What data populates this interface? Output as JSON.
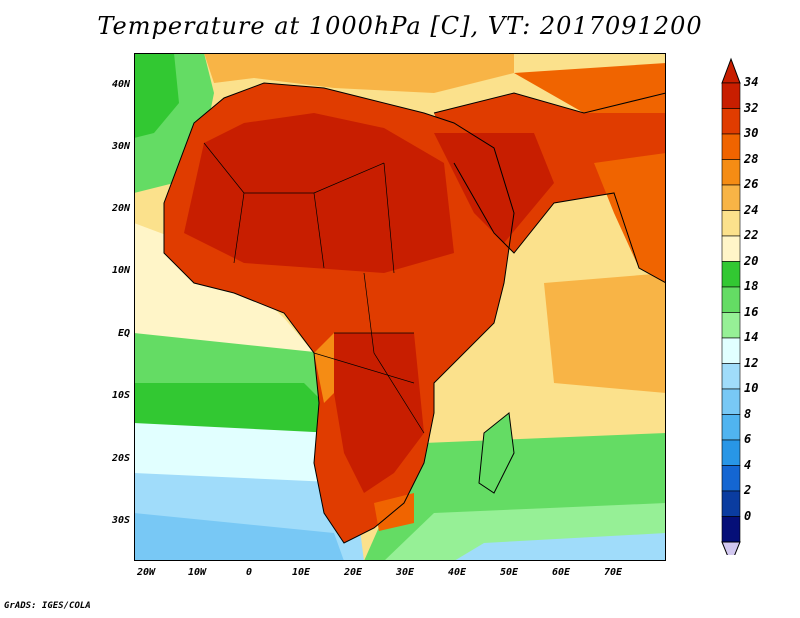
{
  "title": "Temperature at 1000hPa [C], VT: 2017091200",
  "credit": "GrADS: IGES/COLA",
  "axes": {
    "lat_labels": [
      "40N",
      "30N",
      "20N",
      "10N",
      "EQ",
      "10S",
      "20S",
      "30S"
    ],
    "lon_labels": [
      "20W",
      "10W",
      "0",
      "10E",
      "20E",
      "30E",
      "40E",
      "50E",
      "60E",
      "70E"
    ]
  },
  "colorbar": {
    "levels": [
      "34",
      "32",
      "30",
      "28",
      "26",
      "24",
      "22",
      "20",
      "18",
      "16",
      "14",
      "12",
      "10",
      "8",
      "6",
      "4",
      "2",
      "0"
    ],
    "colors": [
      "#c81e00",
      "#e03c00",
      "#f06400",
      "#f58c14",
      "#f8b446",
      "#fbe18c",
      "#fff5c8",
      "#32c832",
      "#64dc64",
      "#96f096",
      "#e1ffff",
      "#a0dcfa",
      "#78c8f5",
      "#50b4f0",
      "#2896e6",
      "#1466d2",
      "#0a3ca0",
      "#050f78"
    ],
    "top_arrow_color": "#c81e00",
    "bottom_arrow_color": "#d2c8f0"
  }
}
